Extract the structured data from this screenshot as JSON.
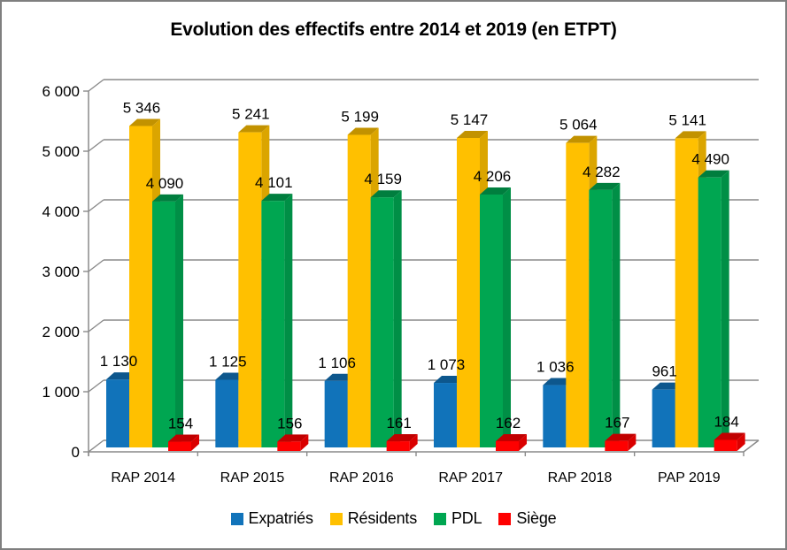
{
  "chart_data": {
    "type": "bar",
    "variant": "3d-clustered-column",
    "title": "Evolution des effectifs entre 2014 et 2019 (en ETPT)",
    "xlabel": "",
    "ylabel": "",
    "categories": [
      "RAP 2014",
      "RAP 2015",
      "RAP 2016",
      "RAP 2017",
      "RAP 2018",
      "PAP 2019"
    ],
    "series": [
      {
        "name": "Expatriés",
        "color": "#1173BA",
        "values": [
          1130,
          1125,
          1106,
          1073,
          1036,
          961
        ],
        "labels": [
          "1 130",
          "1 125",
          "1 106",
          "1 073",
          "1 036",
          "961"
        ]
      },
      {
        "name": "Résidents",
        "color": "#FFC000",
        "values": [
          5346,
          5241,
          5199,
          5147,
          5064,
          5141
        ],
        "labels": [
          "5 346",
          "5 241",
          "5 199",
          "5 147",
          "5 064",
          "5 141"
        ]
      },
      {
        "name": "PDL",
        "color": "#00A651",
        "values": [
          4090,
          4101,
          4159,
          4206,
          4282,
          4490
        ],
        "labels": [
          "4 090",
          "4 101",
          "4 159",
          "4 206",
          "4 282",
          "4 490"
        ]
      },
      {
        "name": "Siège",
        "color": "#FE0000",
        "values": [
          154,
          156,
          161,
          162,
          167,
          184
        ],
        "labels": [
          "154",
          "156",
          "161",
          "162",
          "167",
          "184"
        ]
      }
    ],
    "ylim": [
      0,
      6000
    ],
    "ytick_step": 1000,
    "ytick_labels": [
      "0",
      "1 000",
      "2 000",
      "3 000",
      "4 000",
      "5 000",
      "6 000"
    ],
    "grid": true,
    "gridline_color": "#8A8A8A",
    "axis_color": "#8A8A8A",
    "data_label_color": "#000000",
    "legend_position": "bottom"
  }
}
